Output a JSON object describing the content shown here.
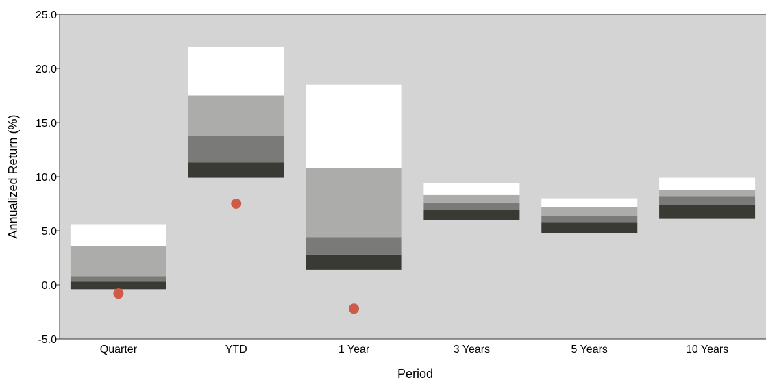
{
  "chart_data": {
    "type": "floating-bar",
    "title": "",
    "xlabel": "Period",
    "ylabel": "Annualized Return (%)",
    "ylim": [
      -5,
      25
    ],
    "yticks": [
      -5,
      0,
      5,
      10,
      15,
      20,
      25
    ],
    "ytick_labels": [
      "-5.0",
      "0.0",
      "5.0",
      "10.0",
      "15.0",
      "20.0",
      "25.0"
    ],
    "categories": [
      "Quarter",
      "YTD",
      "1 Year",
      "3 Years",
      "5 Years",
      "10 Years"
    ],
    "ranges": [
      {
        "bounds": [
          -0.4,
          0.3,
          0.8,
          3.6,
          5.6
        ]
      },
      {
        "bounds": [
          9.9,
          11.3,
          13.8,
          17.5,
          22.0
        ]
      },
      {
        "bounds": [
          1.4,
          2.8,
          4.4,
          10.8,
          18.5
        ]
      },
      {
        "bounds": [
          6.0,
          6.9,
          7.6,
          8.3,
          9.4
        ]
      },
      {
        "bounds": [
          4.8,
          5.8,
          6.4,
          7.2,
          8.0
        ]
      },
      {
        "bounds": [
          6.1,
          7.4,
          8.2,
          8.8,
          9.9
        ]
      }
    ],
    "band_colors": [
      "#3a3a34",
      "#7a7a78",
      "#acacaa",
      "#ffffff"
    ],
    "markers": [
      {
        "category": "Quarter",
        "value": -0.8
      },
      {
        "category": "YTD",
        "value": 7.5
      },
      {
        "category": "1 Year",
        "value": -2.2
      }
    ],
    "marker_color": "#d05a48",
    "plot_background": "#d4d4d4",
    "grid": false
  }
}
